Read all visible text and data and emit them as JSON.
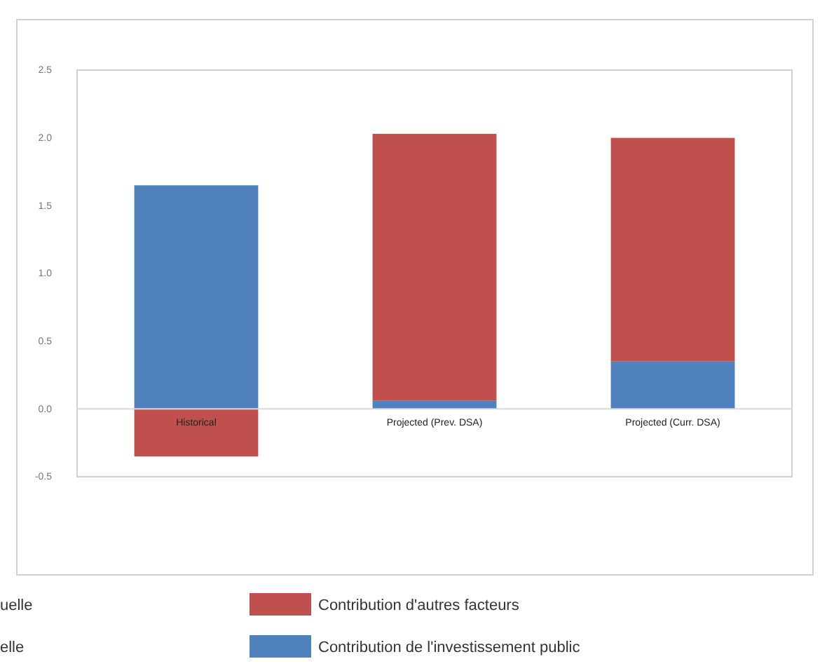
{
  "chart_data": {
    "type": "bar",
    "stacked": true,
    "categories": [
      "Historical",
      "Projected (Prev. DSA)",
      "Projected (Curr. DSA)"
    ],
    "series": [
      {
        "name": "Contribution de l'investissement public",
        "color": "#4f81bd",
        "values": [
          1.65,
          0.06,
          0.35
        ]
      },
      {
        "name": "Contribution d'autres facteurs",
        "color": "#c0504d",
        "values": [
          -0.35,
          1.97,
          1.65
        ]
      }
    ],
    "ylim": [
      -0.5,
      2.5
    ],
    "yticks": [
      -0.5,
      {
        "value": 0,
        "label": "0.0"
      },
      0.5,
      {
        "value": 1,
        "label": "1.0"
      },
      1.5,
      {
        "value": 2,
        "label": "2.0"
      },
      2.5
    ],
    "legend": "bottom",
    "annotations": [
      "uelle",
      "elle"
    ]
  }
}
